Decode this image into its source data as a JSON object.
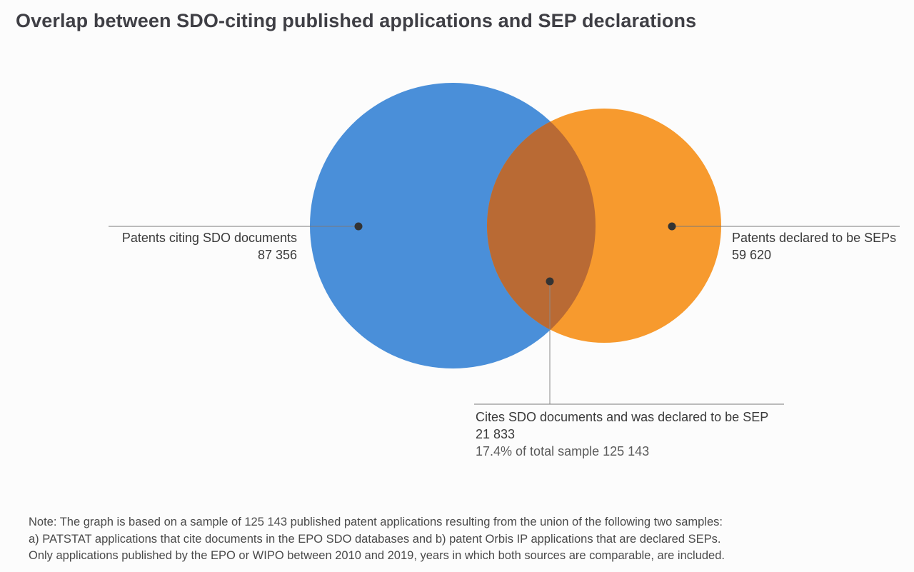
{
  "title": "Overlap between SDO-citing published applications and SEP declarations",
  "chart_data": {
    "type": "venn",
    "sets": [
      {
        "name": "Patents citing SDO documents",
        "value_label": "87 356",
        "value": 87356,
        "color": "#4a8fd9"
      },
      {
        "name": "Patents declared to be SEPs",
        "value_label": "59 620",
        "value": 59620,
        "color": "#f79a2e"
      }
    ],
    "intersection": {
      "name": "Cites SDO documents and was declared to be SEP",
      "value_label": "21 833",
      "value": 21833,
      "share_text": "17.4% of total sample 125 143",
      "color": "#b96a34"
    },
    "total_sample": 125143
  },
  "note": {
    "lines": [
      "Note: The graph is based on a sample of 125 143 published patent applications resulting from the union of the following two samples:",
      "a) PATSTAT applications that cite documents in the EPO SDO databases and b) patent Orbis IP applications that are declared SEPs.",
      "Only applications published by the EPO or WIPO between 2010 and 2019, years in which both sources are comparable, are included."
    ]
  }
}
